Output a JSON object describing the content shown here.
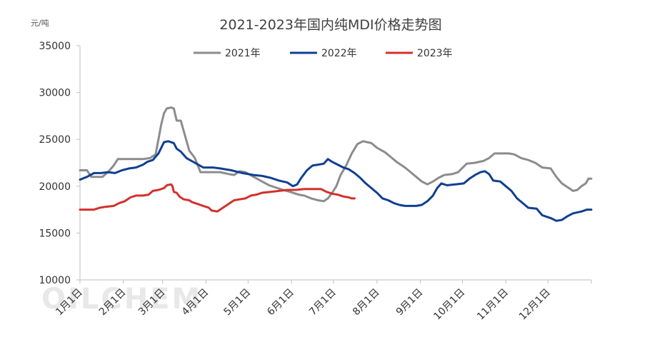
{
  "chart_data": {
    "type": "line",
    "title": "2021-2023年国内纯MDI价格走势图",
    "unit_label": "元/吨",
    "ylim": [
      10000,
      35000
    ],
    "y_ticks": [
      "10000",
      "15000",
      "20000",
      "25000",
      "30000",
      "35000"
    ],
    "x_tick_labels": [
      "1月1日",
      "2月1日",
      "3月1日",
      "4月1日",
      "5月1日",
      "6月1日",
      "7月1日",
      "8月1日",
      "9月1日",
      "10月1日",
      "11月1日",
      "12月1日"
    ],
    "x_tick_days": [
      0,
      31,
      59,
      90,
      120,
      151,
      181,
      212,
      243,
      273,
      304,
      334
    ],
    "x_range_days": [
      0,
      365
    ],
    "grid": false,
    "legend_position": "top",
    "watermark": "OILCHEM",
    "series": [
      {
        "name": "2021年",
        "color": "#8c8c8c",
        "points": [
          [
            0,
            21700
          ],
          [
            5,
            21700
          ],
          [
            8,
            21000
          ],
          [
            12,
            21000
          ],
          [
            16,
            21000
          ],
          [
            20,
            21500
          ],
          [
            24,
            22200
          ],
          [
            27,
            22900
          ],
          [
            35,
            22900
          ],
          [
            45,
            22900
          ],
          [
            50,
            23000
          ],
          [
            54,
            23400
          ],
          [
            56,
            25000
          ],
          [
            58,
            26600
          ],
          [
            60,
            27800
          ],
          [
            62,
            28300
          ],
          [
            65,
            28400
          ],
          [
            67,
            28300
          ],
          [
            69,
            27000
          ],
          [
            72,
            27000
          ],
          [
            75,
            25400
          ],
          [
            78,
            23800
          ],
          [
            82,
            23000
          ],
          [
            86,
            21500
          ],
          [
            95,
            21500
          ],
          [
            100,
            21500
          ],
          [
            106,
            21300
          ],
          [
            110,
            21200
          ],
          [
            114,
            21600
          ],
          [
            118,
            21500
          ],
          [
            124,
            21000
          ],
          [
            130,
            20500
          ],
          [
            135,
            20100
          ],
          [
            145,
            19600
          ],
          [
            150,
            19400
          ],
          [
            156,
            19100
          ],
          [
            160,
            19000
          ],
          [
            165,
            18700
          ],
          [
            170,
            18500
          ],
          [
            174,
            18400
          ],
          [
            177,
            18700
          ],
          [
            180,
            19300
          ],
          [
            183,
            20000
          ],
          [
            186,
            21200
          ],
          [
            190,
            22200
          ],
          [
            194,
            23500
          ],
          [
            198,
            24500
          ],
          [
            202,
            24800
          ],
          [
            208,
            24600
          ],
          [
            212,
            24100
          ],
          [
            218,
            23600
          ],
          [
            222,
            23100
          ],
          [
            226,
            22600
          ],
          [
            232,
            22000
          ],
          [
            236,
            21500
          ],
          [
            240,
            21000
          ],
          [
            244,
            20500
          ],
          [
            248,
            20200
          ],
          [
            252,
            20500
          ],
          [
            256,
            20900
          ],
          [
            260,
            21200
          ],
          [
            266,
            21300
          ],
          [
            270,
            21500
          ],
          [
            276,
            22400
          ],
          [
            282,
            22500
          ],
          [
            288,
            22700
          ],
          [
            292,
            23000
          ],
          [
            296,
            23500
          ],
          [
            302,
            23500
          ],
          [
            306,
            23500
          ],
          [
            310,
            23400
          ],
          [
            315,
            23000
          ],
          [
            320,
            22800
          ],
          [
            325,
            22500
          ],
          [
            330,
            22000
          ],
          [
            336,
            21900
          ],
          [
            340,
            21000
          ],
          [
            344,
            20300
          ],
          [
            348,
            19900
          ],
          [
            352,
            19500
          ],
          [
            355,
            19600
          ],
          [
            358,
            20000
          ],
          [
            361,
            20300
          ],
          [
            363,
            20800
          ],
          [
            365,
            20800
          ]
        ]
      },
      {
        "name": "2022年",
        "color": "#103f91",
        "points": [
          [
            0,
            20700
          ],
          [
            5,
            21000
          ],
          [
            10,
            21400
          ],
          [
            15,
            21400
          ],
          [
            20,
            21500
          ],
          [
            25,
            21400
          ],
          [
            30,
            21700
          ],
          [
            35,
            21900
          ],
          [
            40,
            22000
          ],
          [
            45,
            22300
          ],
          [
            48,
            22600
          ],
          [
            52,
            22800
          ],
          [
            56,
            23500
          ],
          [
            58,
            24100
          ],
          [
            60,
            24700
          ],
          [
            63,
            24800
          ],
          [
            67,
            24600
          ],
          [
            69,
            24000
          ],
          [
            72,
            23700
          ],
          [
            76,
            23000
          ],
          [
            82,
            22500
          ],
          [
            88,
            22000
          ],
          [
            95,
            22000
          ],
          [
            100,
            21900
          ],
          [
            108,
            21700
          ],
          [
            116,
            21400
          ],
          [
            124,
            21200
          ],
          [
            130,
            21100
          ],
          [
            136,
            20900
          ],
          [
            142,
            20600
          ],
          [
            148,
            20400
          ],
          [
            152,
            20000
          ],
          [
            155,
            20200
          ],
          [
            158,
            20900
          ],
          [
            162,
            21700
          ],
          [
            166,
            22200
          ],
          [
            170,
            22300
          ],
          [
            174,
            22400
          ],
          [
            177,
            22900
          ],
          [
            180,
            22600
          ],
          [
            184,
            22300
          ],
          [
            188,
            22000
          ],
          [
            192,
            21800
          ],
          [
            196,
            21400
          ],
          [
            200,
            20900
          ],
          [
            204,
            20300
          ],
          [
            208,
            19800
          ],
          [
            212,
            19300
          ],
          [
            216,
            18700
          ],
          [
            220,
            18500
          ],
          [
            224,
            18200
          ],
          [
            228,
            18000
          ],
          [
            232,
            17900
          ],
          [
            236,
            17900
          ],
          [
            240,
            17900
          ],
          [
            244,
            18000
          ],
          [
            248,
            18400
          ],
          [
            252,
            19000
          ],
          [
            255,
            19800
          ],
          [
            258,
            20300
          ],
          [
            262,
            20100
          ],
          [
            268,
            20200
          ],
          [
            274,
            20300
          ],
          [
            278,
            20800
          ],
          [
            282,
            21200
          ],
          [
            286,
            21500
          ],
          [
            289,
            21600
          ],
          [
            292,
            21300
          ],
          [
            295,
            20600
          ],
          [
            300,
            20500
          ],
          [
            304,
            20000
          ],
          [
            308,
            19500
          ],
          [
            312,
            18700
          ],
          [
            316,
            18200
          ],
          [
            320,
            17700
          ],
          [
            326,
            17600
          ],
          [
            330,
            16900
          ],
          [
            336,
            16600
          ],
          [
            340,
            16300
          ],
          [
            344,
            16400
          ],
          [
            348,
            16800
          ],
          [
            352,
            17100
          ],
          [
            358,
            17300
          ],
          [
            362,
            17500
          ],
          [
            365,
            17500
          ]
        ]
      },
      {
        "name": "2023年",
        "color": "#d3302b",
        "points": [
          [
            0,
            17500
          ],
          [
            10,
            17500
          ],
          [
            14,
            17700
          ],
          [
            18,
            17800
          ],
          [
            24,
            17900
          ],
          [
            28,
            18200
          ],
          [
            32,
            18400
          ],
          [
            36,
            18800
          ],
          [
            40,
            19000
          ],
          [
            45,
            19000
          ],
          [
            49,
            19100
          ],
          [
            52,
            19500
          ],
          [
            56,
            19600
          ],
          [
            60,
            19800
          ],
          [
            62,
            20100
          ],
          [
            65,
            20200
          ],
          [
            66,
            20000
          ],
          [
            67,
            19400
          ],
          [
            69,
            19300
          ],
          [
            71,
            18900
          ],
          [
            74,
            18600
          ],
          [
            78,
            18500
          ],
          [
            80,
            18300
          ],
          [
            84,
            18100
          ],
          [
            88,
            17900
          ],
          [
            92,
            17700
          ],
          [
            94,
            17400
          ],
          [
            98,
            17300
          ],
          [
            102,
            17700
          ],
          [
            106,
            18100
          ],
          [
            110,
            18500
          ],
          [
            114,
            18600
          ],
          [
            118,
            18700
          ],
          [
            122,
            19000
          ],
          [
            126,
            19100
          ],
          [
            130,
            19300
          ],
          [
            136,
            19400
          ],
          [
            142,
            19500
          ],
          [
            148,
            19600
          ],
          [
            154,
            19600
          ],
          [
            160,
            19700
          ],
          [
            166,
            19700
          ],
          [
            172,
            19700
          ],
          [
            176,
            19400
          ],
          [
            180,
            19200
          ],
          [
            184,
            19100
          ],
          [
            188,
            18900
          ],
          [
            192,
            18800
          ],
          [
            194,
            18700
          ],
          [
            196,
            18700
          ]
        ]
      }
    ]
  }
}
